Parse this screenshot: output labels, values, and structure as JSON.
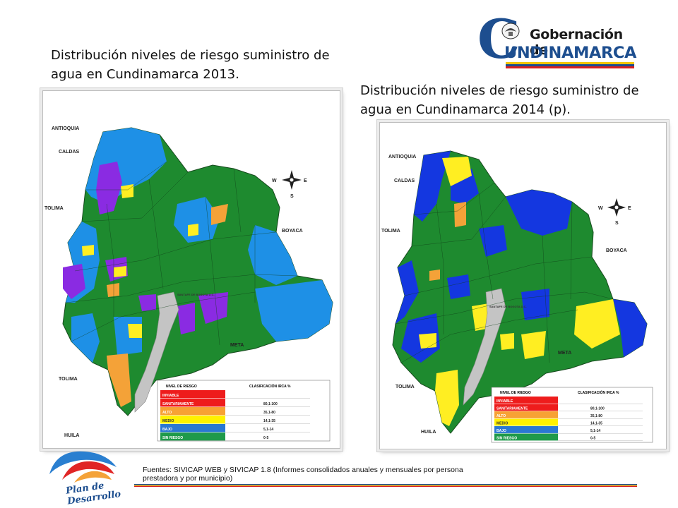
{
  "titles": {
    "map_2013": "Distribución niveles de riesgo suministro de agua en Cundinamarca 2013.",
    "map_2014": "Distribución niveles de riesgo suministro de agua en Cundinamarca 2014 (p)."
  },
  "logo": {
    "letter": "C",
    "line1": "Gobernación de",
    "line2": "UNDINAMARCA",
    "strip_colors": [
      "#f2c500",
      "#1d4e8f",
      "#d81e1e"
    ]
  },
  "plan_logo": {
    "text": "Plan de Desarrollo"
  },
  "sources": "Fuentes: SIVICAP WEB y SIVICAP 1.8 (Informes consolidados anuales y mensuales por persona prestadora y por municipio)",
  "map_labels": {
    "antioquia": "ANTIOQUIA",
    "caldas": "CALDAS",
    "tolima": "TOLIMA",
    "boyaca": "BOYACA",
    "meta": "META",
    "huila": "HUILA",
    "bogota": "SANTAFE DE BOGOTA D.C.",
    "compass_w": "W",
    "compass_e": "E",
    "compass_s": "S"
  },
  "legend": {
    "header_level": "NIVEL DE RIESGO",
    "header_class": "CLASIFICACIÓN IRCA %",
    "rows": [
      {
        "level": "INVIABLE",
        "range": "",
        "color": "#ee1c1c"
      },
      {
        "level": "SANITARIAMENTE",
        "range": "80,1-100",
        "color": "#ee1c1c"
      },
      {
        "level": "ALTO",
        "range": "35,1-80",
        "color": "#f7a234"
      },
      {
        "level": "MEDIO",
        "range": "14,1-35",
        "color": "#fff200"
      },
      {
        "level": "BAJO",
        "range": "5,1-14",
        "color": "#2a78d2"
      },
      {
        "level": "SIN RIESGO",
        "range": "0-5",
        "color": "#1f9a4a"
      }
    ]
  },
  "colors": {
    "sin_riesgo": "#1e8a2f",
    "bajo_2013": "#1e90e6",
    "bajo_2014": "#1437e0",
    "medio": "#ffee22",
    "alto": "#f4a238",
    "purple_2013": "#8a2be2",
    "bogota": "#c4c4c4"
  }
}
